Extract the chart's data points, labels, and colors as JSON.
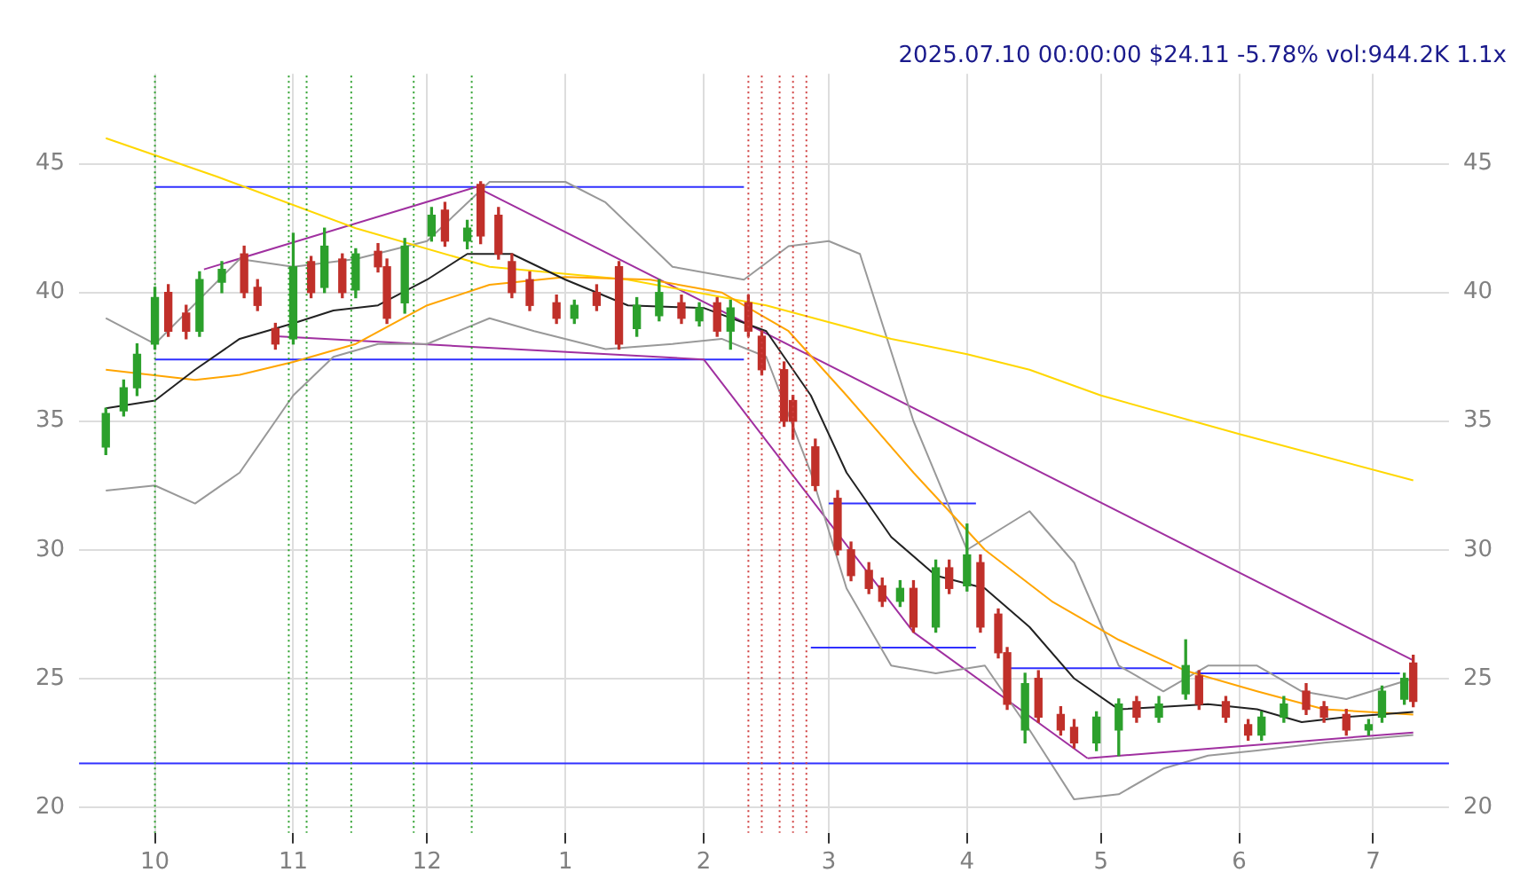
{
  "chart_data": {
    "type": "candlestick",
    "title": "2025.07.10 00:00:00 $24.11 -5.78% vol:944.2K 1.1x",
    "xlim": [
      "2024-09-14",
      "2025-07-18"
    ],
    "xticks": [
      {
        "value": "2024-10-01",
        "label": "10"
      },
      {
        "value": "2024-11-01",
        "label": "11"
      },
      {
        "value": "2024-12-01",
        "label": "12"
      },
      {
        "value": "2025-01-01",
        "label": "1"
      },
      {
        "value": "2025-02-01",
        "label": "2"
      },
      {
        "value": "2025-03-01",
        "label": "3"
      },
      {
        "value": "2025-04-01",
        "label": "4"
      },
      {
        "value": "2025-05-01",
        "label": "5"
      },
      {
        "value": "2025-06-01",
        "label": "6"
      },
      {
        "value": "2025-07-01",
        "label": "7"
      }
    ],
    "ylim": [
      19,
      48.5
    ],
    "yticks": [
      20,
      25,
      30,
      35,
      40,
      45
    ],
    "y2lim": [
      19,
      48.5
    ],
    "y2ticks": [
      20,
      25,
      30,
      35,
      40,
      45
    ],
    "grid": true,
    "legend": false,
    "marker": "none",
    "series": [
      {
        "color": "#2ca02c",
        "x": [
          "2024-09-20",
          "2024-09-24",
          "2024-09-27",
          "2024-10-01",
          "2024-10-11",
          "2024-10-16",
          "2024-11-01",
          "2024-11-08",
          "2024-11-15",
          "2024-11-26",
          "2024-12-02",
          "2024-12-10",
          "2025-01-03",
          "2025-01-17",
          "2025-01-22",
          "2025-01-31",
          "2025-02-07",
          "2025-03-17",
          "2025-03-25",
          "2025-04-01",
          "2025-04-14",
          "2025-04-30",
          "2025-05-05",
          "2025-05-14",
          "2025-05-20",
          "2025-06-06",
          "2025-06-11",
          "2025-06-30",
          "2025-07-03",
          "2025-07-08"
        ],
        "ohlc": [
          [
            34,
            35.5,
            33.7,
            35.3
          ],
          [
            35.4,
            36.6,
            35.2,
            36.3
          ],
          [
            36.3,
            38,
            36,
            37.6
          ],
          [
            38,
            40.2,
            37.8,
            39.8
          ],
          [
            38.5,
            40.8,
            38.3,
            40.5
          ],
          [
            40.4,
            41.2,
            40,
            40.9
          ],
          [
            38.2,
            42.3,
            38,
            41
          ],
          [
            40.2,
            42.5,
            40,
            41.8
          ],
          [
            40.1,
            41.7,
            39.8,
            41.5
          ],
          [
            39.6,
            42.1,
            39.2,
            41.8
          ],
          [
            42.2,
            43.3,
            42,
            43
          ],
          [
            42,
            42.8,
            41.7,
            42.5
          ],
          [
            39,
            39.7,
            38.8,
            39.5
          ],
          [
            38.6,
            39.8,
            38.3,
            39.5
          ],
          [
            39.1,
            40.5,
            38.9,
            40
          ],
          [
            38.9,
            39.6,
            38.7,
            39.4
          ],
          [
            38.5,
            39.7,
            37.8,
            39.4
          ],
          [
            28,
            28.8,
            27.8,
            28.5
          ],
          [
            27,
            29.6,
            26.8,
            29.3
          ],
          [
            28.6,
            31,
            28.4,
            29.8
          ],
          [
            23,
            25.2,
            22.5,
            24.8
          ],
          [
            22.5,
            23.7,
            22.2,
            23.5
          ],
          [
            23,
            24.2,
            22,
            24
          ],
          [
            23.5,
            24.3,
            23.3,
            24
          ],
          [
            24.4,
            26.5,
            24.2,
            25.5
          ],
          [
            22.8,
            23.7,
            22.6,
            23.5
          ],
          [
            23.5,
            24.3,
            23.3,
            24
          ],
          [
            23,
            23.4,
            22.8,
            23.2
          ],
          [
            23.5,
            24.7,
            23.3,
            24.5
          ],
          [
            24.2,
            25.2,
            24,
            25
          ]
        ]
      },
      {
        "color": "#c0302a",
        "x": [
          "2024-10-04",
          "2024-10-08",
          "2024-10-21",
          "2024-10-24",
          "2024-10-28",
          "2024-11-05",
          "2024-11-12",
          "2024-11-20",
          "2024-11-22",
          "2024-12-05",
          "2024-12-13",
          "2024-12-17",
          "2024-12-20",
          "2024-12-24",
          "2024-12-30",
          "2025-01-08",
          "2025-01-13",
          "2025-01-27",
          "2025-02-04",
          "2025-02-11",
          "2025-02-14",
          "2025-02-19",
          "2025-02-21",
          "2025-02-26",
          "2025-03-03",
          "2025-03-06",
          "2025-03-10",
          "2025-03-13",
          "2025-03-20",
          "2025-03-28",
          "2025-04-04",
          "2025-04-08",
          "2025-04-10",
          "2025-04-17",
          "2025-04-22",
          "2025-04-25",
          "2025-05-09",
          "2025-05-23",
          "2025-05-29",
          "2025-06-03",
          "2025-06-16",
          "2025-06-20",
          "2025-06-25",
          "2025-07-10"
        ],
        "ohlc": [
          [
            40,
            40.3,
            38.3,
            38.5
          ],
          [
            39.2,
            39.5,
            38.2,
            38.5
          ],
          [
            41.5,
            41.8,
            39.8,
            40
          ],
          [
            40.2,
            40.5,
            39.3,
            39.5
          ],
          [
            38.6,
            38.8,
            37.8,
            38
          ],
          [
            41.2,
            41.4,
            39.8,
            40
          ],
          [
            41.3,
            41.5,
            39.8,
            40
          ],
          [
            41.6,
            41.9,
            40.8,
            41
          ],
          [
            41,
            41.3,
            38.8,
            39
          ],
          [
            43.2,
            43.5,
            41.8,
            42
          ],
          [
            44.2,
            44.3,
            41.9,
            42.2
          ],
          [
            43,
            43.3,
            41.3,
            41.5
          ],
          [
            41.2,
            41.5,
            39.8,
            40
          ],
          [
            40.5,
            40.8,
            39.3,
            39.5
          ],
          [
            39.6,
            39.9,
            38.8,
            39
          ],
          [
            40,
            40.3,
            39.3,
            39.5
          ],
          [
            41,
            41.2,
            37.8,
            38
          ],
          [
            39.6,
            39.9,
            38.8,
            39
          ],
          [
            39.6,
            39.8,
            38.3,
            38.5
          ],
          [
            39.6,
            39.9,
            38.3,
            38.5
          ],
          [
            38.3,
            38.5,
            36.8,
            37
          ],
          [
            37,
            37.3,
            34.8,
            35
          ],
          [
            35.8,
            36,
            34.3,
            35
          ],
          [
            34,
            34.3,
            32.3,
            32.5
          ],
          [
            32,
            32.3,
            29.8,
            30
          ],
          [
            30,
            30.3,
            28.8,
            29
          ],
          [
            29.2,
            29.5,
            28.3,
            28.5
          ],
          [
            28.6,
            28.9,
            27.8,
            28
          ],
          [
            28.5,
            28.8,
            26.8,
            27
          ],
          [
            29.3,
            29.6,
            28.3,
            28.5
          ],
          [
            29.5,
            29.8,
            26.8,
            27
          ],
          [
            27.5,
            27.7,
            25.8,
            26
          ],
          [
            26,
            26.2,
            23.8,
            24
          ],
          [
            25,
            25.3,
            23.3,
            23.5
          ],
          [
            23.6,
            23.9,
            22.8,
            23
          ],
          [
            23.1,
            23.4,
            22.3,
            22.5
          ],
          [
            24.1,
            24.3,
            23.3,
            23.5
          ],
          [
            25.1,
            25.3,
            23.8,
            24
          ],
          [
            24.1,
            24.3,
            23.3,
            23.5
          ],
          [
            23.2,
            23.4,
            22.6,
            22.8
          ],
          [
            24.5,
            24.8,
            23.6,
            23.8
          ],
          [
            23.9,
            24.1,
            23.3,
            23.5
          ],
          [
            23.6,
            23.8,
            22.8,
            23
          ],
          [
            25.6,
            25.9,
            23.9,
            24.11
          ]
        ]
      },
      {
        "type": "line",
        "color": "#222222",
        "x": [
          "2024-09-20",
          "2024-10-01",
          "2024-10-10",
          "2024-10-20",
          "2024-11-01",
          "2024-11-10",
          "2024-11-20",
          "2024-12-01",
          "2024-12-10",
          "2024-12-20",
          "2025-01-01",
          "2025-01-15",
          "2025-02-01",
          "2025-02-15",
          "2025-02-25",
          "2025-03-05",
          "2025-03-15",
          "2025-03-25",
          "2025-04-05",
          "2025-04-15",
          "2025-04-25",
          "2025-05-05",
          "2025-05-15",
          "2025-05-25",
          "2025-06-05",
          "2025-06-15",
          "2025-06-25",
          "2025-07-10"
        ],
        "values": [
          35.5,
          35.8,
          37,
          38.2,
          38.8,
          39.3,
          39.5,
          40.5,
          41.5,
          41.5,
          40.5,
          39.5,
          39.4,
          38.5,
          36,
          33,
          30.5,
          29,
          28.5,
          27,
          25,
          23.8,
          23.9,
          24,
          23.8,
          23.3,
          23.5,
          23.7
        ]
      },
      {
        "type": "line",
        "color": "#ffa500",
        "x": [
          "2024-09-20",
          "2024-10-10",
          "2024-10-20",
          "2024-11-01",
          "2024-11-15",
          "2024-12-01",
          "2024-12-15",
          "2025-01-01",
          "2025-01-20",
          "2025-02-05",
          "2025-02-20",
          "2025-03-05",
          "2025-03-20",
          "2025-04-05",
          "2025-04-20",
          "2025-05-05",
          "2025-05-20",
          "2025-06-05",
          "2025-06-20",
          "2025-07-10"
        ],
        "values": [
          37,
          36.6,
          36.8,
          37.3,
          38,
          39.5,
          40.3,
          40.6,
          40.5,
          40,
          38.5,
          36,
          33,
          30,
          28,
          26.5,
          25.3,
          24.5,
          23.8,
          23.6
        ]
      },
      {
        "type": "line",
        "color": "#ffd700",
        "x": [
          "2024-09-20",
          "2024-10-15",
          "2024-11-15",
          "2024-12-15",
          "2025-01-15",
          "2025-02-15",
          "2025-03-15",
          "2025-04-01",
          "2025-04-15",
          "2025-05-01",
          "2025-06-01",
          "2025-07-10"
        ],
        "values": [
          46,
          44.5,
          42.5,
          41,
          40.5,
          39.5,
          38.2,
          37.6,
          37,
          36,
          34.5,
          32.7
        ]
      },
      {
        "type": "line",
        "color": "#999999",
        "x": [
          "2024-09-20",
          "2024-10-01",
          "2024-10-20",
          "2024-11-01",
          "2024-11-15",
          "2024-12-01",
          "2024-12-15",
          "2025-01-01",
          "2025-01-10",
          "2025-01-25",
          "2025-02-10",
          "2025-02-20",
          "2025-03-01",
          "2025-03-08",
          "2025-03-20",
          "2025-04-01",
          "2025-04-15",
          "2025-04-25",
          "2025-05-05",
          "2025-05-15",
          "2025-05-25",
          "2025-06-05",
          "2025-06-15",
          "2025-06-25",
          "2025-07-10"
        ],
        "values": [
          39,
          38,
          41.3,
          41,
          41.3,
          42,
          44.3,
          44.3,
          43.5,
          41,
          40.5,
          41.8,
          42,
          41.5,
          35,
          30,
          31.5,
          29.5,
          25.5,
          24.5,
          25.5,
          25.5,
          24.5,
          24.2,
          25
        ]
      },
      {
        "type": "line",
        "color": "#999999",
        "x": [
          "2024-09-20",
          "2024-10-01",
          "2024-10-10",
          "2024-10-20",
          "2024-11-01",
          "2024-11-10",
          "2024-11-20",
          "2024-12-01",
          "2024-12-15",
          "2024-12-25",
          "2025-01-10",
          "2025-01-25",
          "2025-02-05",
          "2025-02-15",
          "2025-02-25",
          "2025-03-05",
          "2025-03-15",
          "2025-03-25",
          "2025-04-05",
          "2025-04-15",
          "2025-04-25",
          "2025-05-05",
          "2025-05-15",
          "2025-05-25",
          "2025-06-05",
          "2025-06-20",
          "2025-07-10"
        ],
        "values": [
          32.3,
          32.5,
          31.8,
          33,
          36,
          37.5,
          38,
          38,
          39,
          38.5,
          37.8,
          38,
          38.2,
          37.5,
          33,
          28.5,
          25.5,
          25.2,
          25.5,
          23,
          20.3,
          20.5,
          21.5,
          22,
          22.2,
          22.5,
          22.8
        ]
      },
      {
        "type": "line",
        "color": "#a030a0",
        "x": [
          "2024-10-12",
          "2024-12-12",
          "2025-07-10"
        ],
        "values": [
          40.9,
          44.1,
          25.7
        ]
      },
      {
        "type": "line",
        "color": "#a030a0",
        "x": [
          "2024-10-28",
          "2025-02-01",
          "2025-03-20",
          "2025-04-28"
        ],
        "values": [
          38.3,
          37.4,
          26.8,
          21.9
        ]
      },
      {
        "type": "line",
        "color": "#a030a0",
        "x": [
          "2025-04-28",
          "2025-07-10"
        ],
        "values": [
          21.9,
          22.9
        ]
      },
      {
        "type": "line",
        "color": "#3030ff",
        "x": [
          "2024-10-01",
          "2025-02-10"
        ],
        "values": [
          44.1,
          44.1
        ]
      },
      {
        "type": "line",
        "color": "#3030ff",
        "x": [
          "2024-10-01",
          "2025-02-10"
        ],
        "values": [
          37.4,
          37.4
        ]
      },
      {
        "type": "line",
        "color": "#3030ff",
        "x": [
          "2025-03-01",
          "2025-04-03"
        ],
        "values": [
          31.8,
          31.8
        ]
      },
      {
        "type": "line",
        "color": "#3030ff",
        "x": [
          "2025-02-25",
          "2025-04-03"
        ],
        "values": [
          26.2,
          26.2
        ]
      },
      {
        "type": "line",
        "color": "#3030ff",
        "x": [
          "2025-04-10",
          "2025-05-17"
        ],
        "values": [
          25.4,
          25.4
        ]
      },
      {
        "type": "line",
        "color": "#3030ff",
        "x": [
          "2025-05-22",
          "2025-07-07"
        ],
        "values": [
          25.2,
          25.2
        ]
      }
    ],
    "ref_lines": [
      {
        "axis": "y",
        "value": 21.7,
        "color": "#3030ff",
        "line_style": "solid"
      },
      {
        "axis": "x",
        "value": "2024-10-01",
        "color": "#2ca02c",
        "line_style": "dotted"
      },
      {
        "axis": "x",
        "value": "2024-10-31",
        "color": "#2ca02c",
        "line_style": "dotted"
      },
      {
        "axis": "x",
        "value": "2024-11-04",
        "color": "#2ca02c",
        "line_style": "dotted"
      },
      {
        "axis": "x",
        "value": "2024-11-14",
        "color": "#2ca02c",
        "line_style": "dotted"
      },
      {
        "axis": "x",
        "value": "2024-11-28",
        "color": "#2ca02c",
        "line_style": "dotted"
      },
      {
        "axis": "x",
        "value": "2024-12-11",
        "color": "#2ca02c",
        "line_style": "dotted"
      },
      {
        "axis": "x",
        "value": "2025-02-11",
        "color": "#d04040",
        "line_style": "dotted"
      },
      {
        "axis": "x",
        "value": "2025-02-14",
        "color": "#d04040",
        "line_style": "dotted"
      },
      {
        "axis": "x",
        "value": "2025-02-18",
        "color": "#d04040",
        "line_style": "dotted"
      },
      {
        "axis": "x",
        "value": "2025-02-21",
        "color": "#d04040",
        "line_style": "dotted"
      },
      {
        "axis": "x",
        "value": "2025-02-24",
        "color": "#d04040",
        "line_style": "dotted"
      }
    ]
  }
}
